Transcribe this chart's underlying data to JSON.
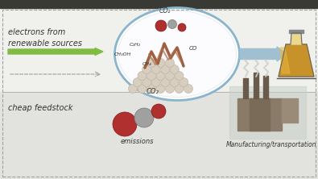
{
  "bg_top_color": "#f0f0ec",
  "bg_bottom_color": "#e2e2de",
  "top_bar_color": "#3a3a35",
  "text_electrons": "electrons from\nrenewable sources",
  "text_cheap": "cheap feedstock",
  "text_emissions": "emissions",
  "text_co2_label": "CO₂",
  "text_mfg": "Manufacturing/transportation",
  "green_arrow_color": "#80bc44",
  "blue_arrow_color": "#a0bfd0",
  "ellipse_edge_color": "#8ab4cc",
  "red_sphere_color": "#b03030",
  "gray_sphere_color": "#a0a0a0",
  "dashed_color": "#a0a0a0",
  "flask_amber": "#c8922a",
  "flask_outline": "#666666",
  "catalyst_color": "#d8cec0",
  "catalyst_edge": "#b8ae9e",
  "flame_color": "#9e6040",
  "label_color": "#333333"
}
